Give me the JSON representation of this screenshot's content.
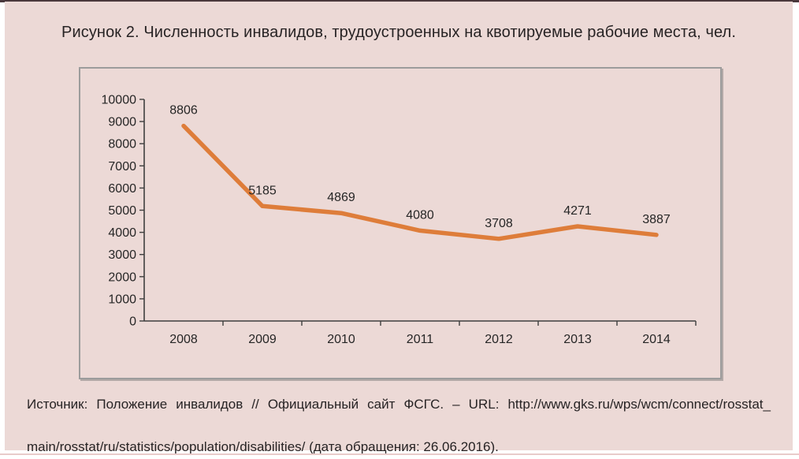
{
  "figure": {
    "caption": "Рисунок 2. Численность инвалидов, трудоустроенных на квотируемые рабочие места, чел."
  },
  "source": {
    "line1": "Источник: Положение инвалидов // Официальный сайт ФСГС. – URL: http://www.gks.ru/wps/wcm/connect/rosstat_",
    "line2": "main/rosstat/ru/statistics/population/disabilities/ (дата обращения: 26.06.2016)."
  },
  "colors": {
    "page_background": "#ecd9d6",
    "line_color": "#de7d3a",
    "axis_color": "#3f3f3f",
    "text_color": "#262626",
    "frame_border": "#9c9c9c",
    "top_bar": "#4a383c",
    "bottom_rule": "#e8cbca"
  },
  "chart_data": {
    "type": "line",
    "title": "Численность инвалидов, трудоустроенных на квотируемые рабочие места, чел.",
    "categories": [
      "2008",
      "2009",
      "2010",
      "2011",
      "2012",
      "2013",
      "2014"
    ],
    "values": [
      8806,
      5185,
      4869,
      4080,
      3708,
      4271,
      3887
    ],
    "xlabel": "",
    "ylabel": "",
    "ylim": [
      0,
      10000
    ],
    "ytick_step": 1000,
    "grid": false,
    "legend": false,
    "data_labels": true
  }
}
